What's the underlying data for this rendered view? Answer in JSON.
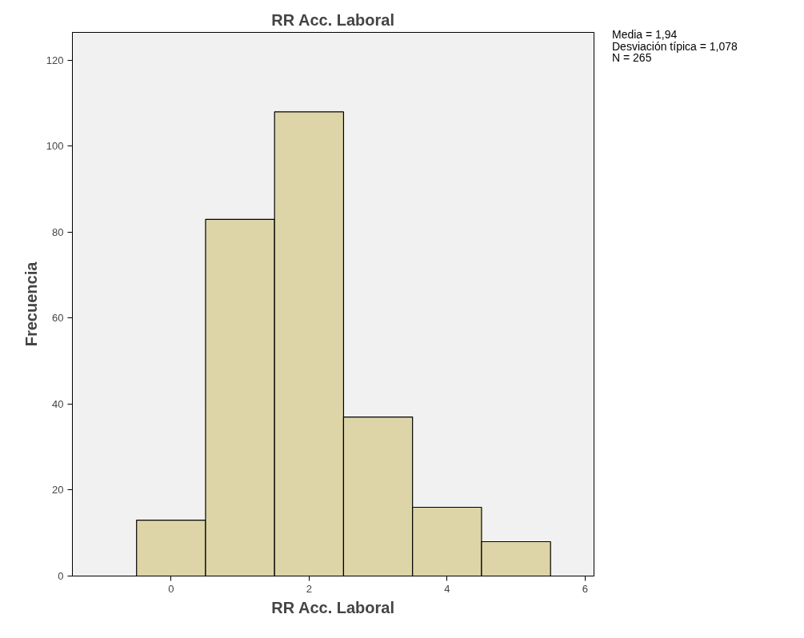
{
  "chart_data": {
    "type": "histogram",
    "title": "RR Acc. Laboral",
    "xlabel": "RR Acc. Laboral",
    "ylabel": "Frecuencia",
    "bins": [
      -0.5,
      0.5,
      1.5,
      2.5,
      3.5,
      4.5,
      5.5
    ],
    "values": [
      13,
      83,
      108,
      37,
      16,
      8
    ],
    "color": "#ddd5a8",
    "xlim": [
      -1.43,
      6.13
    ],
    "xticks": [
      0,
      2,
      4,
      6
    ],
    "ylim": [
      0,
      126.5
    ],
    "yticks": [
      0,
      20,
      40,
      60,
      80,
      100,
      120
    ],
    "grid": false,
    "annotations": [
      "Media = 1,94",
      "Desviación típica = 1,078",
      "N = 265"
    ]
  }
}
